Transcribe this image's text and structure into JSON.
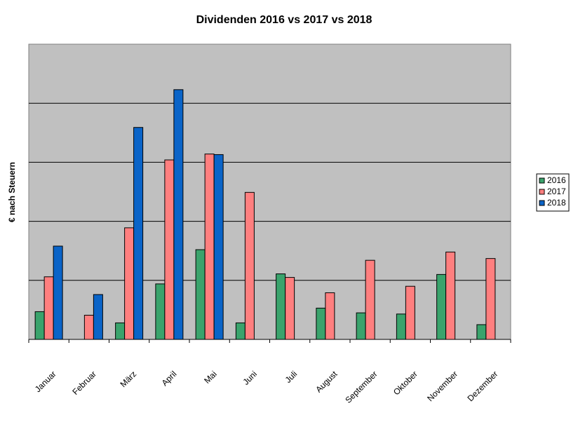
{
  "chart_data": {
    "type": "bar",
    "title": "Dividenden 2016 vs 2017 vs 2018",
    "xlabel": "",
    "ylabel": "€ nach Steuern",
    "ylim": [
      0,
      5
    ],
    "grid": true,
    "legend_position": "right",
    "categories": [
      "Januar",
      "Februar",
      "März",
      "April",
      "Mai",
      "Juni",
      "Juli",
      "August",
      "September",
      "Oktober",
      "November",
      "Dezember"
    ],
    "series": [
      {
        "name": "2016",
        "color": "#3aa36c",
        "values": [
          0.47,
          null,
          0.28,
          0.94,
          1.52,
          0.28,
          1.11,
          0.53,
          0.45,
          0.43,
          1.1,
          0.25
        ]
      },
      {
        "name": "2017",
        "color": "#ff7f7f",
        "values": [
          1.06,
          0.41,
          1.89,
          3.04,
          3.14,
          2.49,
          1.05,
          0.79,
          1.34,
          0.9,
          1.48,
          1.37
        ]
      },
      {
        "name": "2018",
        "color": "#0a64c8",
        "values": [
          1.58,
          0.76,
          3.59,
          4.23,
          3.13,
          null,
          null,
          null,
          null,
          null,
          null,
          null
        ]
      }
    ]
  }
}
